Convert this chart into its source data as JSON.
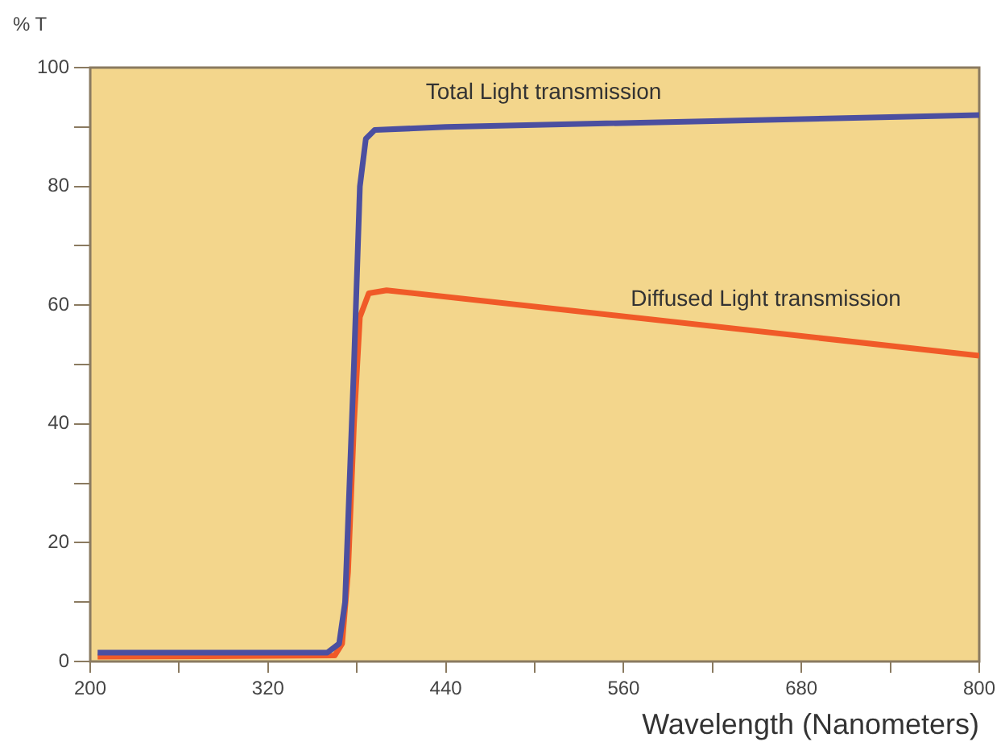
{
  "chart_data": {
    "type": "line",
    "ylabel": "% T",
    "xlabel": "Wavelength (Nanometers)",
    "xlim": [
      200,
      800
    ],
    "xticks": [
      200,
      {
        "value": 260,
        "label": null
      },
      320,
      {
        "value": 380,
        "label": null
      },
      440,
      {
        "value": 500,
        "label": null
      },
      560,
      {
        "value": 620,
        "label": null
      },
      680,
      {
        "value": 740,
        "label": null
      },
      800
    ],
    "ylim": [
      0,
      100
    ],
    "yticks": [
      0,
      {
        "value": 10,
        "label": null
      },
      20,
      {
        "value": 30,
        "label": null
      },
      40,
      {
        "value": 50,
        "label": null
      },
      60,
      {
        "value": 70,
        "label": null
      },
      80,
      {
        "value": 90,
        "label": null
      },
      100
    ],
    "series": [
      {
        "name": "Total Light transmission",
        "color": "#4b4fa0",
        "x": [
          205,
          360,
          368,
          372,
          378,
          382,
          386,
          392,
          440,
          800
        ],
        "values": [
          1.5,
          1.5,
          3,
          10,
          50,
          80,
          88,
          89.5,
          90,
          92
        ]
      },
      {
        "name": "Diffused Light transmission",
        "color": "#f05a28",
        "x": [
          205,
          365,
          370,
          374,
          378,
          382,
          388,
          400,
          800
        ],
        "values": [
          0.8,
          1,
          3,
          15,
          40,
          58,
          62,
          62.5,
          51.5
        ]
      }
    ],
    "grid": false,
    "legend": false,
    "marker": "none",
    "line_style": "solid"
  }
}
